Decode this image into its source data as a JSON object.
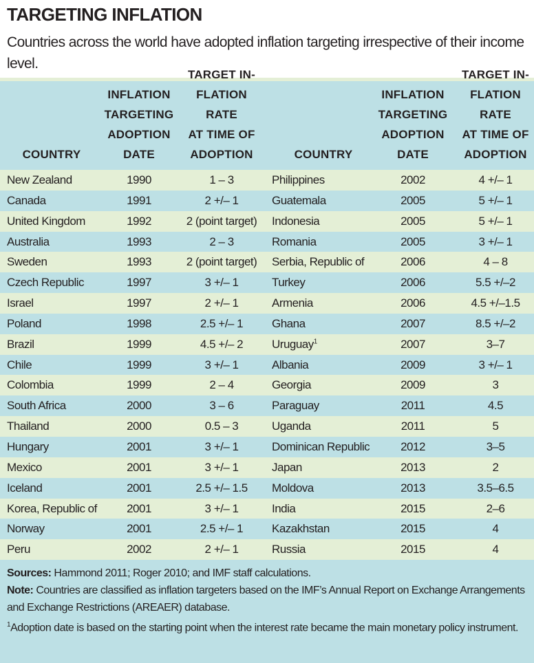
{
  "title": "TARGETING INFLATION",
  "subtitle": "Countries across the world have adopted inflation targeting irrespective of their income level.",
  "headers": {
    "country": "COUNTRY",
    "date": "INFLATION\nTARGETING\nADOPTION\nDATE",
    "rate": "TARGET IN-\nFLATION RATE\nAT TIME OF\nADOPTION"
  },
  "left_rows": [
    [
      "New Zealand",
      "1990",
      "1 – 3"
    ],
    [
      "Canada",
      "1991",
      "2 +/– 1"
    ],
    [
      "United Kingdom",
      "1992",
      "2 (point target)"
    ],
    [
      "Australia",
      "1993",
      "2 – 3"
    ],
    [
      "Sweden",
      "1993",
      "2 (point target)"
    ],
    [
      "Czech Republic",
      "1997",
      "3 +/– 1"
    ],
    [
      "Israel",
      "1997",
      "2 +/– 1"
    ],
    [
      "Poland",
      "1998",
      "2.5 +/– 1"
    ],
    [
      "Brazil",
      "1999",
      "4.5 +/– 2"
    ],
    [
      "Chile",
      "1999",
      "3 +/– 1"
    ],
    [
      "Colombia",
      "1999",
      "2 – 4"
    ],
    [
      "South Africa",
      "2000",
      "3 – 6"
    ],
    [
      "Thailand",
      "2000",
      "0.5 – 3"
    ],
    [
      "Hungary",
      "2001",
      "3 +/– 1"
    ],
    [
      "Mexico",
      "2001",
      "3 +/– 1"
    ],
    [
      "Iceland",
      "2001",
      "2.5 +/– 1.5"
    ],
    [
      "Korea, Republic of",
      "2001",
      "3 +/– 1"
    ],
    [
      "Norway",
      "2001",
      "2.5 +/– 1"
    ],
    [
      "Peru",
      "2002",
      "2 +/– 1"
    ]
  ],
  "right_rows": [
    [
      "Philippines",
      "2002",
      "4 +/– 1"
    ],
    [
      "Guatemala",
      "2005",
      "5 +/– 1"
    ],
    [
      "Indonesia",
      "2005",
      "5 +/– 1"
    ],
    [
      "Romania",
      "2005",
      "3 +/– 1"
    ],
    [
      "Serbia, Republic of",
      "2006",
      "4 – 8"
    ],
    [
      "Turkey",
      "2006",
      "5.5 +/–2"
    ],
    [
      "Armenia",
      "2006",
      "4.5 +/–1.5"
    ],
    [
      "Ghana",
      "2007",
      "8.5 +/–2"
    ],
    [
      "Uruguay",
      "2007",
      "3–7",
      "1"
    ],
    [
      "Albania",
      "2009",
      "3 +/– 1"
    ],
    [
      "Georgia",
      "2009",
      "3"
    ],
    [
      "Paraguay",
      "2011",
      "4.5"
    ],
    [
      "Uganda",
      "2011",
      "5"
    ],
    [
      "Dominican Republic",
      "2012",
      "3–5"
    ],
    [
      "Japan",
      "2013",
      "2"
    ],
    [
      "Moldova",
      "2013",
      "3.5–6.5"
    ],
    [
      "India",
      "2015",
      "2–6"
    ],
    [
      "Kazakhstan",
      "2015",
      "4"
    ],
    [
      "Russia",
      "2015",
      "4"
    ]
  ],
  "footer": {
    "sources_label": "Sources:",
    "sources": " Hammond 2011; Roger 2010; and IMF staff calculations.",
    "note_label": "Note:",
    "note": " Countries are classified as inflation targeters based on the IMF’s  Annual Report on Exchange Arrangements and Exchange Restrictions (AREAER) database.",
    "footnote_mark": "1",
    "footnote": "Adoption date is based on the starting point when the interest rate became the main monetary policy instrument."
  }
}
